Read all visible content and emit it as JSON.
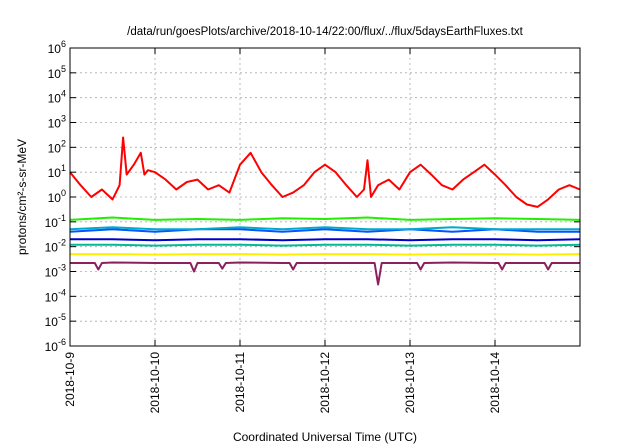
{
  "chart_data": {
    "type": "line",
    "title": "/data/run/goesPlots/archive/2018-10-14/22:00/flux/../flux/5daysEarthFluxes.txt",
    "xlabel": "Coordinated Universal Time (UTC)",
    "ylabel": "protons/cm²-s-sr-MeV",
    "y_scale": "log",
    "ylim_exponents": [
      -6,
      6
    ],
    "y_ticks": [
      {
        "base": "10",
        "exp": "-6"
      },
      {
        "base": "10",
        "exp": "-5"
      },
      {
        "base": "10",
        "exp": "-4"
      },
      {
        "base": "10",
        "exp": "-3"
      },
      {
        "base": "10",
        "exp": "-2"
      },
      {
        "base": "10",
        "exp": "-1"
      },
      {
        "base": "10",
        "exp": "0"
      },
      {
        "base": "10",
        "exp": "1"
      },
      {
        "base": "10",
        "exp": "2"
      },
      {
        "base": "10",
        "exp": "3"
      },
      {
        "base": "10",
        "exp": "4"
      },
      {
        "base": "10",
        "exp": "5"
      },
      {
        "base": "10",
        "exp": "6"
      }
    ],
    "x_range": [
      "2018-10-09",
      "2018-10-15"
    ],
    "x_ticks": [
      "2018-10-9",
      "2018-10-10",
      "2018-10-11",
      "2018-10-12",
      "2018-10-13",
      "2018-10-14"
    ],
    "grid": true,
    "series": [
      {
        "color": "#ff0000",
        "x": [
          "2018-10-09 00:00",
          "2018-10-09 03:00",
          "2018-10-09 06:00",
          "2018-10-09 09:00",
          "2018-10-09 12:00",
          "2018-10-09 14:00",
          "2018-10-09 15:00",
          "2018-10-09 16:00",
          "2018-10-09 18:00",
          "2018-10-09 20:00",
          "2018-10-09 21:00",
          "2018-10-09 22:00",
          "2018-10-10 00:00",
          "2018-10-10 03:00",
          "2018-10-10 06:00",
          "2018-10-10 09:00",
          "2018-10-10 12:00",
          "2018-10-10 15:00",
          "2018-10-10 18:00",
          "2018-10-10 21:00",
          "2018-10-11 00:00",
          "2018-10-11 03:00",
          "2018-10-11 06:00",
          "2018-10-11 09:00",
          "2018-10-11 12:00",
          "2018-10-11 15:00",
          "2018-10-11 18:00",
          "2018-10-11 21:00",
          "2018-10-12 00:00",
          "2018-10-12 03:00",
          "2018-10-12 06:00",
          "2018-10-12 09:00",
          "2018-10-12 11:00",
          "2018-10-12 12:00",
          "2018-10-12 13:00",
          "2018-10-12 15:00",
          "2018-10-12 18:00",
          "2018-10-12 21:00",
          "2018-10-13 00:00",
          "2018-10-13 03:00",
          "2018-10-13 06:00",
          "2018-10-13 09:00",
          "2018-10-13 12:00",
          "2018-10-13 15:00",
          "2018-10-13 18:00",
          "2018-10-13 21:00",
          "2018-10-14 00:00",
          "2018-10-14 03:00",
          "2018-10-14 06:00",
          "2018-10-14 09:00",
          "2018-10-14 12:00",
          "2018-10-14 15:00",
          "2018-10-14 18:00",
          "2018-10-14 21:00",
          "2018-10-15 00:00"
        ],
        "y": [
          10,
          3,
          1,
          2,
          0.8,
          3,
          250,
          8,
          20,
          60,
          8,
          12,
          10,
          5,
          2,
          4,
          5,
          2,
          3,
          1.5,
          20,
          60,
          10,
          3,
          1,
          1.5,
          3,
          10,
          20,
          10,
          3,
          1,
          2,
          30,
          1,
          3,
          5,
          2,
          10,
          20,
          8,
          3,
          2,
          5,
          10,
          20,
          8,
          3,
          1,
          0.5,
          0.4,
          0.8,
          2,
          3,
          2
        ]
      },
      {
        "color": "#22ee00",
        "x": [
          "2018-10-09 00:00",
          "2018-10-09 12:00",
          "2018-10-10 00:00",
          "2018-10-10 12:00",
          "2018-10-11 00:00",
          "2018-10-11 12:00",
          "2018-10-12 00:00",
          "2018-10-12 12:00",
          "2018-10-13 00:00",
          "2018-10-13 12:00",
          "2018-10-14 00:00",
          "2018-10-14 12:00",
          "2018-10-15 00:00"
        ],
        "y": [
          0.12,
          0.15,
          0.12,
          0.13,
          0.12,
          0.14,
          0.13,
          0.15,
          0.12,
          0.13,
          0.14,
          0.13,
          0.12
        ]
      },
      {
        "color": "#00aacc",
        "x": [
          "2018-10-09 00:00",
          "2018-10-09 12:00",
          "2018-10-10 00:00",
          "2018-10-10 12:00",
          "2018-10-11 00:00",
          "2018-10-11 12:00",
          "2018-10-12 00:00",
          "2018-10-12 12:00",
          "2018-10-13 00:00",
          "2018-10-13 12:00",
          "2018-10-14 00:00",
          "2018-10-14 12:00",
          "2018-10-15 00:00"
        ],
        "y": [
          0.05,
          0.06,
          0.05,
          0.05,
          0.06,
          0.05,
          0.06,
          0.05,
          0.05,
          0.06,
          0.05,
          0.05,
          0.05
        ]
      },
      {
        "color": "#0055ff",
        "x": [
          "2018-10-09 00:00",
          "2018-10-09 12:00",
          "2018-10-10 00:00",
          "2018-10-10 12:00",
          "2018-10-11 00:00",
          "2018-10-11 12:00",
          "2018-10-12 00:00",
          "2018-10-12 12:00",
          "2018-10-13 00:00",
          "2018-10-13 12:00",
          "2018-10-14 00:00",
          "2018-10-14 12:00",
          "2018-10-15 00:00"
        ],
        "y": [
          0.04,
          0.05,
          0.04,
          0.05,
          0.05,
          0.04,
          0.05,
          0.04,
          0.05,
          0.04,
          0.05,
          0.04,
          0.04
        ]
      },
      {
        "color": "#0000cc",
        "x": [
          "2018-10-09 00:00",
          "2018-10-09 12:00",
          "2018-10-10 00:00",
          "2018-10-10 12:00",
          "2018-10-11 00:00",
          "2018-10-11 12:00",
          "2018-10-12 00:00",
          "2018-10-12 12:00",
          "2018-10-13 00:00",
          "2018-10-13 12:00",
          "2018-10-14 00:00",
          "2018-10-14 12:00",
          "2018-10-15 00:00"
        ],
        "y": [
          0.02,
          0.02,
          0.018,
          0.02,
          0.02,
          0.018,
          0.02,
          0.02,
          0.018,
          0.02,
          0.02,
          0.018,
          0.02
        ]
      },
      {
        "color": "#00bb99",
        "x": [
          "2018-10-09 00:00",
          "2018-10-09 12:00",
          "2018-10-10 00:00",
          "2018-10-10 12:00",
          "2018-10-11 00:00",
          "2018-10-11 12:00",
          "2018-10-12 00:00",
          "2018-10-12 12:00",
          "2018-10-13 00:00",
          "2018-10-13 12:00",
          "2018-10-14 00:00",
          "2018-10-14 12:00",
          "2018-10-15 00:00"
        ],
        "y": [
          0.012,
          0.012,
          0.011,
          0.012,
          0.012,
          0.011,
          0.012,
          0.012,
          0.011,
          0.012,
          0.012,
          0.011,
          0.012
        ]
      },
      {
        "color": "#ffee00",
        "x": [
          "2018-10-09 00:00",
          "2018-10-09 12:00",
          "2018-10-10 00:00",
          "2018-10-10 12:00",
          "2018-10-11 00:00",
          "2018-10-11 12:00",
          "2018-10-12 00:00",
          "2018-10-12 12:00",
          "2018-10-13 00:00",
          "2018-10-13 12:00",
          "2018-10-14 00:00",
          "2018-10-14 12:00",
          "2018-10-15 00:00"
        ],
        "y": [
          0.005,
          0.005,
          0.0048,
          0.005,
          0.005,
          0.0048,
          0.005,
          0.005,
          0.0048,
          0.005,
          0.005,
          0.0048,
          0.005
        ]
      },
      {
        "color": "#8b2060",
        "x": [
          "2018-10-09 00:00",
          "2018-10-09 07:00",
          "2018-10-09 08:00",
          "2018-10-09 09:00",
          "2018-10-09 12:00",
          "2018-10-10 00:00",
          "2018-10-10 10:00",
          "2018-10-10 11:00",
          "2018-10-10 12:00",
          "2018-10-10 18:00",
          "2018-10-10 19:00",
          "2018-10-10 20:00",
          "2018-10-11 00:00",
          "2018-10-11 12:00",
          "2018-10-11 14:00",
          "2018-10-11 15:00",
          "2018-10-11 16:00",
          "2018-10-12 00:00",
          "2018-10-12 12:00",
          "2018-10-12 14:00",
          "2018-10-12 15:00",
          "2018-10-12 16:00",
          "2018-10-13 00:00",
          "2018-10-13 02:00",
          "2018-10-13 03:00",
          "2018-10-13 04:00",
          "2018-10-13 12:00",
          "2018-10-14 00:00",
          "2018-10-14 01:00",
          "2018-10-14 02:00",
          "2018-10-14 03:00",
          "2018-10-14 12:00",
          "2018-10-14 14:00",
          "2018-10-14 15:00",
          "2018-10-14 16:00",
          "2018-10-15 00:00"
        ],
        "y": [
          0.0022,
          0.0022,
          0.0012,
          0.0022,
          0.0023,
          0.0022,
          0.0022,
          0.001,
          0.0022,
          0.0022,
          0.0013,
          0.0022,
          0.0023,
          0.0022,
          0.0022,
          0.0012,
          0.0022,
          0.0022,
          0.0022,
          0.0022,
          0.0003,
          0.0022,
          0.0022,
          0.0022,
          0.0012,
          0.0022,
          0.0023,
          0.0022,
          0.0022,
          0.0012,
          0.0022,
          0.0022,
          0.0022,
          0.0012,
          0.0022,
          0.0022
        ]
      }
    ]
  }
}
